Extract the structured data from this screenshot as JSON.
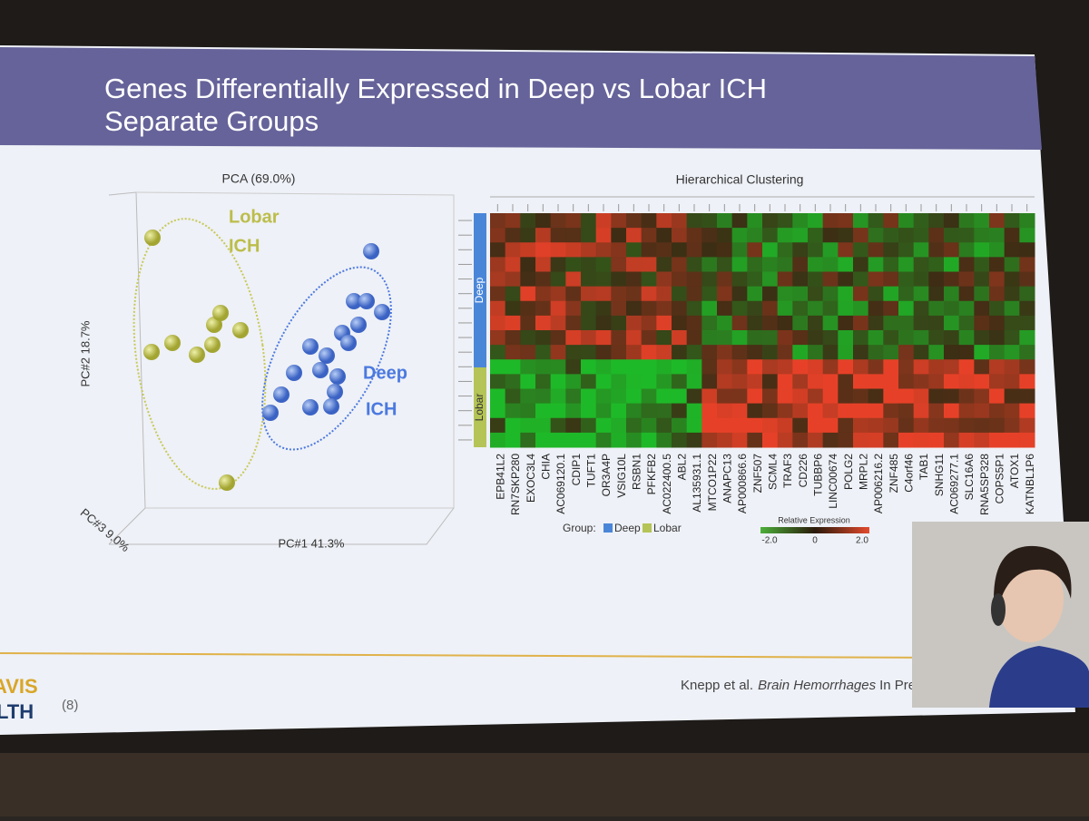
{
  "slide": {
    "title_lines": [
      "Genes Differentially Expressed in Deep vs Lobar ICH",
      "Separate Groups"
    ],
    "pca": {
      "title": "PCA (69.0%)",
      "y_label": "PC#2  18.7%",
      "z_label": "PC#3  9.0%",
      "x_label": "PC#1  41.3%",
      "groups": [
        {
          "lines": [
            "Lobar",
            "ICH"
          ]
        },
        {
          "lines": [
            "Deep",
            "ICH"
          ]
        }
      ]
    },
    "heatmap": {
      "title": "Hierarchical Clustering",
      "row_groups": [
        "Deep",
        "Lobar"
      ],
      "genes": [
        "EPB41L2",
        "RN7SKP280",
        "EXOC3L4",
        "CHIA",
        "AC069120.1",
        "CDIP1",
        "TUFT1",
        "OR3A4P",
        "VSIG10L",
        "RSBN1",
        "PFKFB2",
        "AC022400.5",
        "ABL2",
        "AL135931.1",
        "MTCO1P22",
        "ANAPC13",
        "AP000866.6",
        "ZNF507",
        "SCML4",
        "TRAF3",
        "CD226",
        "TUBBP6",
        "LINC00674",
        "POLG2",
        "MRPL2",
        "AP006216.2",
        "ZNF485",
        "C4orf46",
        "TAB1",
        "SNHG11",
        "AC069277.1",
        "SLC16A6",
        "RNA5SP328",
        "COPS5P1",
        "ATOX1",
        "KATNBL1P6"
      ],
      "group_legend": {
        "label": "Group:",
        "items": [
          "Deep",
          "Lobar"
        ]
      },
      "color_legend": {
        "title": "Relative Expression",
        "ticks": [
          "-2.0",
          "0",
          "2.0"
        ]
      }
    },
    "citation": {
      "authors": "Knepp et al.",
      "journal": "Brain Hemorrhages",
      "status": "In Press."
    },
    "footer": {
      "logo_lines": [
        "AVIS",
        "LTH"
      ],
      "page": "(8)"
    }
  }
}
